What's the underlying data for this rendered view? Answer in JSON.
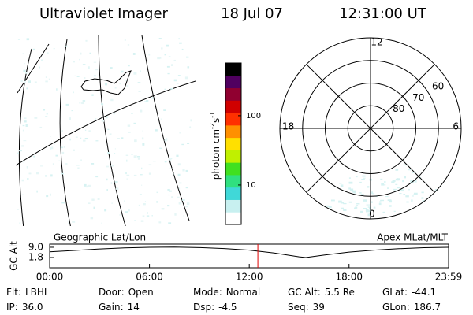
{
  "header": {
    "title": "Ultraviolet Imager",
    "date": "18 Jul 07",
    "time": "12:31:00 UT"
  },
  "left_panel": {
    "label": "Geographic Lat/Lon"
  },
  "colorbar": {
    "label_parts": [
      "photon cm",
      "-2",
      "s",
      "-1"
    ],
    "scale": "log",
    "lim": [
      2.7,
      575
    ],
    "ticks": [
      10,
      100
    ],
    "colors": [
      "#ffffff",
      "#c8f0f0",
      "#40d8d8",
      "#30e080",
      "#40e020",
      "#c0f000",
      "#ffe000",
      "#ff9000",
      "#ff3000",
      "#d00000",
      "#900030",
      "#500060",
      "#000000"
    ]
  },
  "polar": {
    "label": "Apex MLat/MLT",
    "mlt_labels": {
      "top": "12",
      "left": "18",
      "right": "6",
      "bottom": "0"
    },
    "lat_lim": [
      50,
      90
    ],
    "lat_rings": [
      60,
      70,
      80
    ]
  },
  "altitude_plot": {
    "y_label": "GC Alt",
    "x": [
      0,
      1.5,
      3,
      4.5,
      6,
      7.5,
      9,
      10.5,
      12,
      13.5,
      15,
      15.4,
      16.5,
      18,
      19.5,
      21,
      22.5,
      23.98
    ],
    "values": [
      5.8,
      6.8,
      7.8,
      8.6,
      9.0,
      9.1,
      8.8,
      8.1,
      7.0,
      5.0,
      2.3,
      1.8,
      3.5,
      5.6,
      7.0,
      8.0,
      8.7,
      9.0
    ],
    "color": "#000000",
    "xlim": [
      0,
      23.983
    ],
    "ylim": [
      -5.4,
      11.2
    ],
    "xticks": [
      {
        "value": 0,
        "label": "00:00"
      },
      {
        "value": 6,
        "label": "06:00"
      },
      {
        "value": 12,
        "label": "12:00"
      },
      {
        "value": 18,
        "label": "18:00"
      },
      {
        "value": 23.983,
        "label": "23:59"
      }
    ],
    "yticks": [
      1.8,
      {
        "value": 9,
        "label": "9.0"
      }
    ],
    "current_time": 12.5167,
    "current_color": "#e00000"
  },
  "info": [
    {
      "label": "Flt:",
      "value": "LBHL"
    },
    {
      "label": "Door:",
      "value": "Open"
    },
    {
      "label": "Mode:",
      "value": "Normal"
    },
    {
      "label": "GC Alt:",
      "value": "5.5 Re"
    },
    {
      "label": "GLat:",
      "value": "-44.1"
    },
    {
      "label": "IP:",
      "value": "36.0"
    },
    {
      "label": "Gain:",
      "value": "14"
    },
    {
      "label": "Dsp:",
      "value": "-4.5"
    },
    {
      "label": "Seq:",
      "value": "39"
    },
    {
      "label": "GLon:",
      "value": "186.7"
    }
  ]
}
